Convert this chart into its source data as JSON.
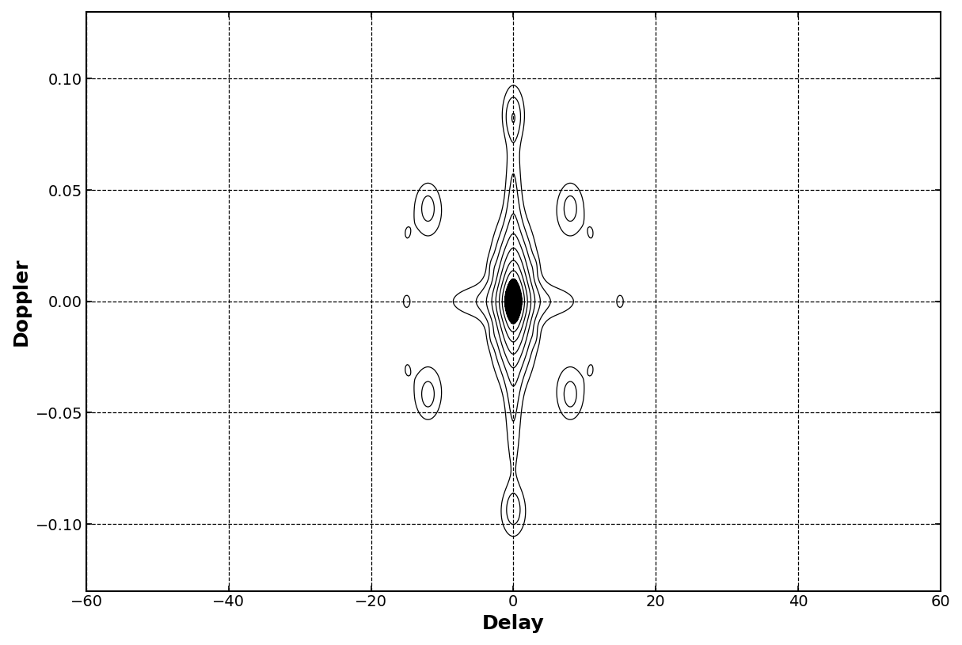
{
  "xlabel": "Delay",
  "ylabel": "Doppler",
  "xlim": [
    -60,
    60
  ],
  "ylim": [
    -0.13,
    0.13
  ],
  "xticks": [
    -60,
    -40,
    -20,
    0,
    20,
    40,
    60
  ],
  "yticks": [
    -0.1,
    -0.05,
    0,
    0.05,
    0.1
  ],
  "background_color": "#ffffff",
  "xlabel_fontsize": 18,
  "ylabel_fontsize": 18,
  "tick_fontsize": 14,
  "figsize": [
    12.15,
    8.15
  ],
  "dpi": 100
}
